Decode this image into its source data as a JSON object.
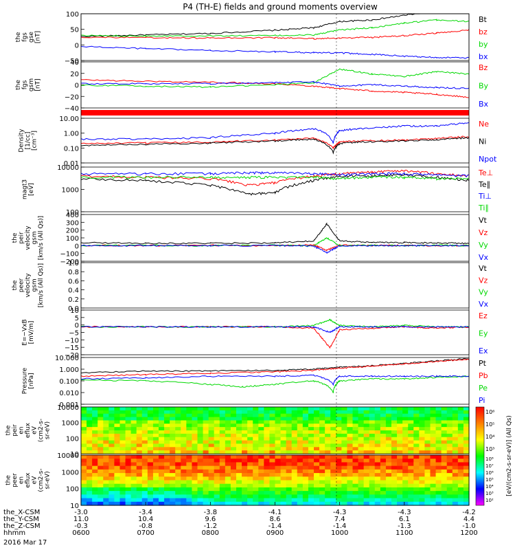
{
  "title": "P4 (TH-E) fields and ground moments overview",
  "footer": {
    "orbit_rows": [
      {
        "label": "the_X-CSM",
        "values": [
          "-3.0",
          "-3.4",
          "-3.8",
          "-4.1",
          "-4.3",
          "-4.3",
          "-4.2"
        ]
      },
      {
        "label": "the_Y-CSM",
        "values": [
          "11.0",
          "10.4",
          "9.6",
          "8.6",
          "7.4",
          "6.1",
          "4.4"
        ]
      },
      {
        "label": "the_Z-CSM",
        "values": [
          "-0.3",
          "-0.8",
          "-1.2",
          "-1.4",
          "-1.4",
          "-1.3",
          "-1.0"
        ]
      },
      {
        "label": "hhmm",
        "values": [
          "0600",
          "0700",
          "0800",
          "0900",
          "1000",
          "1100",
          "1200"
        ]
      }
    ],
    "date": "2016 Mar 17"
  },
  "colors": {
    "black": "#000000",
    "red": "#ff0000",
    "green": "#00d800",
    "blue": "#0000ff"
  },
  "colorbar": {
    "label": "[eV/(cm2-s-sr-eV)] (All Qs)",
    "ticks_top": [
      "10⁶",
      "10⁵",
      "10⁴",
      "10³"
    ],
    "ticks_bottom": [
      "10⁸",
      "10⁷",
      "10⁶",
      "10⁵",
      "10⁴",
      "10³",
      "10²"
    ]
  },
  "chart_data": [
    {
      "type": "line",
      "panel": "fgs-gse",
      "ylabel": [
        "the",
        "fgs",
        "gse",
        "[nT]"
      ],
      "yticks": [
        "100",
        "50",
        "0",
        "−50"
      ],
      "ylim": [
        -50,
        100
      ],
      "legend": [
        "Bt",
        "bz",
        "by",
        "bx"
      ],
      "legend_colors": [
        "black",
        "red",
        "green",
        "blue"
      ],
      "series": [
        {
          "name": "Bt",
          "color": "black",
          "x": [
            6,
            7,
            8,
            9,
            9.6,
            10,
            10.5,
            11,
            11.5,
            12
          ],
          "y": [
            27,
            32,
            37,
            47,
            55,
            75,
            80,
            95,
            110,
            108
          ]
        },
        {
          "name": "bz",
          "color": "red",
          "x": [
            6,
            7,
            8,
            9,
            9.6,
            10,
            10.5,
            11,
            11.5,
            12
          ],
          "y": [
            25,
            23,
            22,
            23,
            20,
            22,
            24,
            30,
            38,
            48
          ]
        },
        {
          "name": "by",
          "color": "green",
          "x": [
            6,
            7,
            8,
            9,
            9.6,
            10,
            10.5,
            11,
            11.5,
            12
          ],
          "y": [
            30,
            29,
            29,
            30,
            32,
            48,
            55,
            70,
            80,
            75
          ]
        },
        {
          "name": "bx",
          "color": "blue",
          "x": [
            6,
            7,
            8,
            9,
            9.6,
            10,
            10.5,
            11,
            11.5,
            12
          ],
          "y": [
            -5,
            -12,
            -18,
            -22,
            -25,
            -26,
            -30,
            -36,
            -40,
            -42
          ]
        }
      ]
    },
    {
      "type": "line",
      "panel": "fgs-gsm",
      "ylabel": [
        "the",
        "fgs",
        "gsm",
        "[nT]"
      ],
      "yticks": [
        "40",
        "20",
        "0",
        "−20",
        "−40"
      ],
      "ylim": [
        -50,
        45
      ],
      "legend": [
        "Bz",
        "By",
        "Bx"
      ],
      "legend_colors": [
        "red",
        "green",
        "blue"
      ],
      "series": [
        {
          "name": "Bz",
          "color": "red",
          "x": [
            6,
            7,
            8,
            9,
            9.6,
            10,
            10.5,
            11,
            11.5,
            12
          ],
          "y": [
            8,
            5,
            3,
            0,
            -5,
            -10,
            -15,
            -18,
            -22,
            -28
          ]
        },
        {
          "name": "By",
          "color": "green",
          "x": [
            6,
            7,
            8,
            9,
            9.6,
            10,
            10.5,
            11,
            11.5,
            12
          ],
          "y": [
            -3,
            -5,
            -7,
            -2,
            2,
            30,
            20,
            15,
            25,
            20
          ]
        },
        {
          "name": "Bx",
          "color": "blue",
          "x": [
            6,
            7,
            8,
            9,
            9.6,
            10,
            10.5,
            11,
            11.5,
            12
          ],
          "y": [
            0,
            0,
            0,
            2,
            4,
            -5,
            -2,
            -5,
            -8,
            -10
          ]
        }
      ]
    },
    {
      "type": "line",
      "panel": "density",
      "ylabel": [
        "Density",
        "[1/cc]",
        "[cm⁻³]"
      ],
      "yticks": [
        "10.00",
        "1.00",
        "0.10",
        "0.01"
      ],
      "yscale": "log",
      "ylim": [
        0.01,
        10
      ],
      "legend": [
        "Ne",
        "Ni",
        "Npot"
      ],
      "legend_colors": [
        "red",
        "black",
        "blue"
      ],
      "series": [
        {
          "name": "Ne",
          "color": "red",
          "x": [
            6,
            7,
            8,
            9,
            9.6,
            9.9,
            10,
            10.3,
            11,
            11.5,
            12
          ],
          "y": [
            0.2,
            0.22,
            0.25,
            0.35,
            0.45,
            0.1,
            0.25,
            0.3,
            0.35,
            0.45,
            0.6
          ]
        },
        {
          "name": "Ni",
          "color": "black",
          "x": [
            6,
            7,
            8,
            9,
            9.6,
            9.9,
            10,
            10.3,
            11,
            11.5,
            12
          ],
          "y": [
            0.15,
            0.18,
            0.22,
            0.3,
            0.4,
            0.05,
            0.2,
            0.25,
            0.3,
            0.35,
            0.5
          ]
        },
        {
          "name": "Npot",
          "color": "blue",
          "x": [
            6,
            7,
            8,
            9,
            9.6,
            9.9,
            10,
            10.3,
            11,
            11.5,
            12
          ],
          "y": [
            0.4,
            0.4,
            0.5,
            1.0,
            2.0,
            0.2,
            1.5,
            2.0,
            3.0,
            3.0,
            5.0
          ]
        }
      ]
    },
    {
      "type": "line",
      "panel": "temperature",
      "ylabel": [
        "magt3",
        "[eV]"
      ],
      "yticks": [
        "10000",
        "1000",
        "100"
      ],
      "yscale": "log",
      "ylim": [
        100,
        10000
      ],
      "legend": [
        "Te⊥",
        "Te∥",
        "Ti⊥",
        "Ti∥"
      ],
      "legend_colors": [
        "red",
        "black",
        "blue",
        "green"
      ],
      "series": [
        {
          "name": "Te⊥",
          "color": "red",
          "x": [
            6,
            7,
            8,
            8.6,
            9,
            9.6,
            10,
            10.5,
            11,
            11.5,
            12
          ],
          "y": [
            4000,
            3500,
            3000,
            1500,
            2000,
            4000,
            5000,
            6000,
            7000,
            5000,
            4000
          ]
        },
        {
          "name": "Te∥",
          "color": "black",
          "x": [
            6,
            7,
            8,
            8.6,
            9,
            9.6,
            10,
            10.5,
            11,
            11.5,
            12
          ],
          "y": [
            3000,
            2500,
            1500,
            600,
            700,
            2500,
            4000,
            4000,
            4500,
            3500,
            2500
          ]
        },
        {
          "name": "Ti⊥",
          "color": "blue",
          "x": [
            6,
            7,
            8,
            8.6,
            9,
            9.6,
            10,
            10.5,
            11,
            11.5,
            12
          ],
          "y": [
            5000,
            5000,
            5000,
            5500,
            5500,
            5000,
            4500,
            5000,
            5000,
            4500,
            4000
          ]
        },
        {
          "name": "Ti∥",
          "color": "green",
          "x": [
            6,
            7,
            8,
            8.6,
            9,
            9.6,
            10,
            10.5,
            11,
            11.5,
            12
          ],
          "y": [
            3500,
            3500,
            3500,
            3500,
            3500,
            3500,
            3000,
            3500,
            3500,
            3000,
            3000
          ]
        }
      ]
    },
    {
      "type": "line",
      "panel": "peir-velocity",
      "ylabel": [
        "the",
        "peir",
        "velocity",
        "gsm",
        "[km/s (All Qs)]"
      ],
      "yticks": [
        "400",
        "300",
        "200",
        "100",
        "0",
        "−100",
        "−200"
      ],
      "ylim": [
        -200,
        400
      ],
      "legend": [
        "Vt",
        "Vz",
        "Vy",
        "Vx"
      ],
      "legend_colors": [
        "black",
        "red",
        "green",
        "blue"
      ],
      "series": [
        {
          "name": "Vt",
          "color": "black",
          "x": [
            6,
            7,
            8,
            9,
            9.6,
            9.8,
            10,
            10.5,
            11,
            11.5,
            12
          ],
          "y": [
            40,
            30,
            30,
            35,
            60,
            280,
            60,
            40,
            40,
            35,
            30
          ]
        },
        {
          "name": "Vz",
          "color": "red",
          "x": [
            6,
            7,
            8,
            9,
            9.6,
            9.8,
            10,
            10.5,
            11,
            11.5,
            12
          ],
          "y": [
            5,
            0,
            5,
            0,
            10,
            -60,
            10,
            0,
            5,
            0,
            0
          ]
        },
        {
          "name": "Vy",
          "color": "green",
          "x": [
            6,
            7,
            8,
            9,
            9.6,
            9.8,
            10,
            10.5,
            11,
            11.5,
            12
          ],
          "y": [
            0,
            5,
            0,
            5,
            0,
            100,
            0,
            5,
            0,
            5,
            0
          ]
        },
        {
          "name": "Vx",
          "color": "blue",
          "x": [
            6,
            7,
            8,
            9,
            9.6,
            9.8,
            10,
            10.5,
            11,
            11.5,
            12
          ],
          "y": [
            0,
            0,
            0,
            0,
            -5,
            -90,
            0,
            0,
            0,
            0,
            0
          ]
        }
      ]
    },
    {
      "type": "line",
      "panel": "peer-velocity",
      "ylabel": [
        "the",
        "peer",
        "velocity",
        "gsm",
        "[km/s (All Qs)]"
      ],
      "yticks": [
        "1.0",
        "0.8",
        "0.6",
        "0.4",
        "0.2",
        "0.0"
      ],
      "ylim": [
        0,
        1
      ],
      "legend": [
        "Vt",
        "Vz",
        "Vy",
        "Vx"
      ],
      "legend_colors": [
        "black",
        "red",
        "green",
        "blue"
      ],
      "series": []
    },
    {
      "type": "line",
      "panel": "efield",
      "ylabel": [
        "E=−VxB",
        "[mV/m]"
      ],
      "yticks": [
        "10",
        "5",
        "0",
        "−5",
        "−10",
        "−15",
        "−20"
      ],
      "ylim": [
        -20,
        12
      ],
      "legend": [
        "Ez",
        "Ey",
        "Ex"
      ],
      "legend_colors": [
        "red",
        "green",
        "blue"
      ],
      "series": [
        {
          "name": "Ez",
          "color": "red",
          "x": [
            6,
            7,
            8,
            9,
            9.6,
            9.85,
            10,
            10.5,
            11,
            11.5,
            12
          ],
          "y": [
            0,
            0,
            0,
            0,
            -1,
            -15,
            -2,
            -1,
            0,
            -1,
            0
          ]
        },
        {
          "name": "Ey",
          "color": "green",
          "x": [
            6,
            7,
            8,
            9,
            9.6,
            9.85,
            10,
            10.5,
            11,
            11.5,
            12
          ],
          "y": [
            0,
            0,
            0,
            0,
            1,
            5,
            1,
            0,
            1,
            0,
            0
          ]
        },
        {
          "name": "Ex",
          "color": "blue",
          "x": [
            6,
            7,
            8,
            9,
            9.6,
            9.85,
            10,
            10.5,
            11,
            11.5,
            12
          ],
          "y": [
            0,
            0,
            0,
            0,
            0,
            -4,
            0,
            0,
            0,
            0,
            0
          ]
        }
      ]
    },
    {
      "type": "line",
      "panel": "pressure",
      "ylabel": [
        "Pressure",
        "[nPa]"
      ],
      "yticks": [
        "10.000",
        "1.000",
        "0.100",
        "0.010",
        "0.001"
      ],
      "yscale": "log",
      "ylim": [
        0.001,
        10
      ],
      "legend": [
        "Pt",
        "Pb",
        "Pe",
        "Pi"
      ],
      "legend_colors": [
        "black",
        "red",
        "green",
        "blue"
      ],
      "series": [
        {
          "name": "Pt",
          "color": "black",
          "x": [
            6,
            7,
            8,
            9,
            9.6,
            10,
            10.5,
            11,
            11.5,
            12
          ],
          "y": [
            0.5,
            0.7,
            0.7,
            0.8,
            1.0,
            1.5,
            2.0,
            3.0,
            5.0,
            8.0
          ]
        },
        {
          "name": "Pb",
          "color": "red",
          "x": [
            6,
            7,
            8,
            9,
            9.6,
            10,
            10.5,
            11,
            11.5,
            12
          ],
          "y": [
            0.25,
            0.35,
            0.45,
            0.6,
            0.8,
            1.2,
            1.8,
            2.8,
            4.5,
            7.0
          ]
        },
        {
          "name": "Pe",
          "color": "green",
          "x": [
            6,
            7,
            8,
            8.5,
            9,
            9.6,
            9.9,
            10,
            10.5,
            11,
            11.5,
            12
          ],
          "y": [
            0.12,
            0.1,
            0.05,
            0.03,
            0.05,
            0.1,
            0.01,
            0.1,
            0.15,
            0.15,
            0.2,
            0.25
          ]
        },
        {
          "name": "Pi",
          "color": "blue",
          "x": [
            6,
            7,
            8,
            9,
            9.6,
            9.9,
            10,
            10.5,
            11,
            11.5,
            12
          ],
          "y": [
            0.15,
            0.18,
            0.25,
            0.25,
            0.3,
            0.05,
            0.25,
            0.25,
            0.25,
            0.25,
            0.25
          ]
        }
      ]
    },
    {
      "type": "heatmap",
      "panel": "peir-eflux",
      "ylabel": [
        "the",
        "peir",
        "en",
        "eflux",
        "eV",
        "(cm2-s-",
        "sr-eV)"
      ],
      "yticks": [
        "10000",
        "1000",
        "100",
        "10"
      ],
      "yscale": "log"
    },
    {
      "type": "heatmap",
      "panel": "peer-eflux",
      "ylabel": [
        "the",
        "peer",
        "en",
        "eflux",
        "eV",
        "(cm2-s-",
        "sr-eV)"
      ],
      "yticks": [
        "10000",
        "1000",
        "100",
        "10"
      ],
      "yscale": "log"
    }
  ]
}
